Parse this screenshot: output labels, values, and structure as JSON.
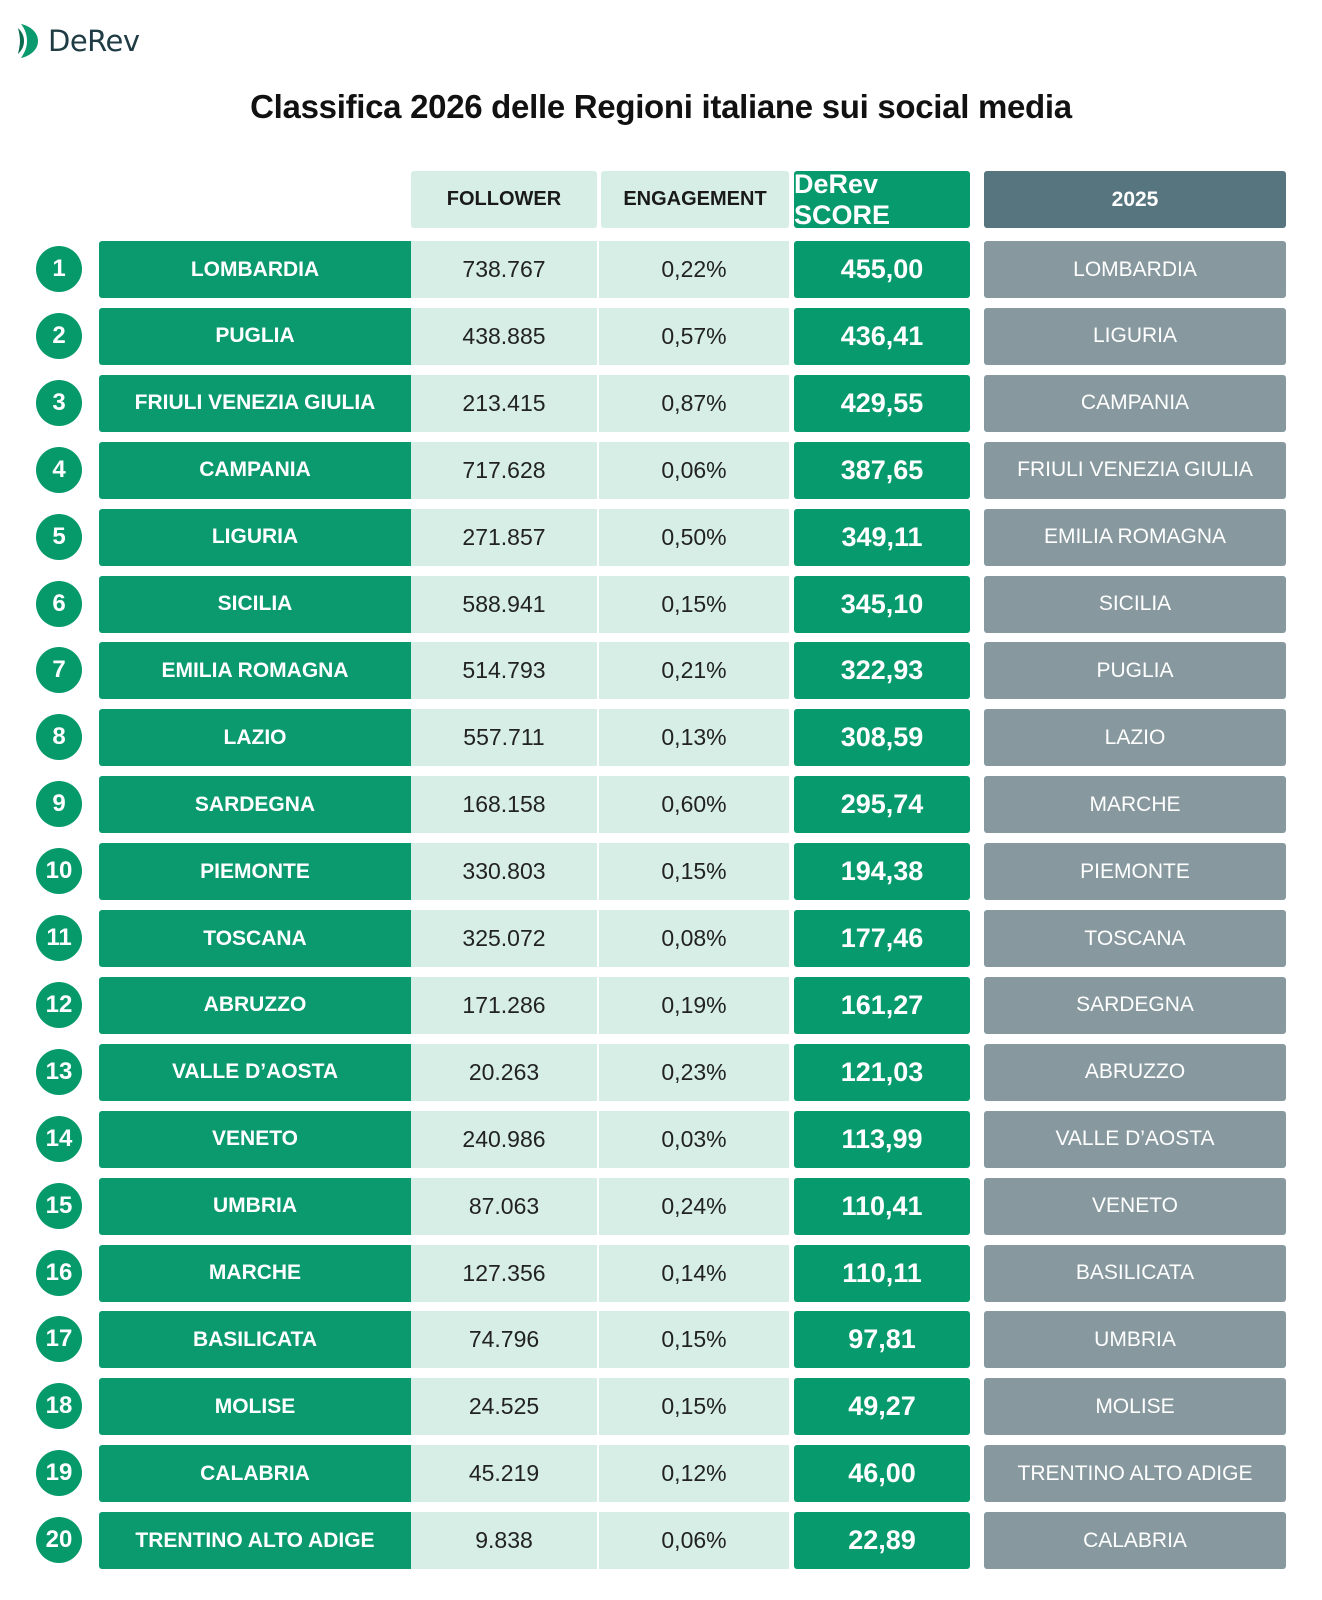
{
  "brand": {
    "name": "DeRev"
  },
  "title": "Classifica 2026 delle Regioni italiane sui social media",
  "headers": {
    "follower": "FOLLOWER",
    "engagement": "ENGAGEMENT",
    "score": "DeRev SCORE",
    "previous": "2025"
  },
  "colors": {
    "primary_green": "#0a9a6e",
    "light_green": "#d6eee6",
    "previous_gray": "#87999f",
    "previous_header": "#57757f"
  },
  "rows": [
    {
      "rank": "1",
      "region": "LOMBARDIA",
      "follower": "738.767",
      "engagement": "0,22%",
      "score": "455,00",
      "previous": "LOMBARDIA"
    },
    {
      "rank": "2",
      "region": "PUGLIA",
      "follower": "438.885",
      "engagement": "0,57%",
      "score": "436,41",
      "previous": "LIGURIA"
    },
    {
      "rank": "3",
      "region": "FRIULI VENEZIA GIULIA",
      "follower": "213.415",
      "engagement": "0,87%",
      "score": "429,55",
      "previous": "CAMPANIA"
    },
    {
      "rank": "4",
      "region": "CAMPANIA",
      "follower": "717.628",
      "engagement": "0,06%",
      "score": "387,65",
      "previous": "FRIULI VENEZIA GIULIA"
    },
    {
      "rank": "5",
      "region": "LIGURIA",
      "follower": "271.857",
      "engagement": "0,50%",
      "score": "349,11",
      "previous": "EMILIA ROMAGNA"
    },
    {
      "rank": "6",
      "region": "SICILIA",
      "follower": "588.941",
      "engagement": "0,15%",
      "score": "345,10",
      "previous": "SICILIA"
    },
    {
      "rank": "7",
      "region": "EMILIA ROMAGNA",
      "follower": "514.793",
      "engagement": "0,21%",
      "score": "322,93",
      "previous": "PUGLIA"
    },
    {
      "rank": "8",
      "region": "LAZIO",
      "follower": "557.711",
      "engagement": "0,13%",
      "score": "308,59",
      "previous": "LAZIO"
    },
    {
      "rank": "9",
      "region": "SARDEGNA",
      "follower": "168.158",
      "engagement": "0,60%",
      "score": "295,74",
      "previous": "MARCHE"
    },
    {
      "rank": "10",
      "region": "PIEMONTE",
      "follower": "330.803",
      "engagement": "0,15%",
      "score": "194,38",
      "previous": "PIEMONTE"
    },
    {
      "rank": "11",
      "region": "TOSCANA",
      "follower": "325.072",
      "engagement": "0,08%",
      "score": "177,46",
      "previous": "TOSCANA"
    },
    {
      "rank": "12",
      "region": "ABRUZZO",
      "follower": "171.286",
      "engagement": "0,19%",
      "score": "161,27",
      "previous": "SARDEGNA"
    },
    {
      "rank": "13",
      "region": "VALLE D’AOSTA",
      "follower": "20.263",
      "engagement": "0,23%",
      "score": "121,03",
      "previous": "ABRUZZO"
    },
    {
      "rank": "14",
      "region": "VENETO",
      "follower": "240.986",
      "engagement": "0,03%",
      "score": "113,99",
      "previous": "VALLE D’AOSTA"
    },
    {
      "rank": "15",
      "region": "UMBRIA",
      "follower": "87.063",
      "engagement": "0,24%",
      "score": "110,41",
      "previous": "VENETO"
    },
    {
      "rank": "16",
      "region": "MARCHE",
      "follower": "127.356",
      "engagement": "0,14%",
      "score": "110,11",
      "previous": "BASILICATA"
    },
    {
      "rank": "17",
      "region": "BASILICATA",
      "follower": "74.796",
      "engagement": "0,15%",
      "score": "97,81",
      "previous": "UMBRIA"
    },
    {
      "rank": "18",
      "region": "MOLISE",
      "follower": "24.525",
      "engagement": "0,15%",
      "score": "49,27",
      "previous": "MOLISE"
    },
    {
      "rank": "19",
      "region": "CALABRIA",
      "follower": "45.219",
      "engagement": "0,12%",
      "score": "46,00",
      "previous": "TRENTINO ALTO ADIGE"
    },
    {
      "rank": "20",
      "region": "TRENTINO ALTO ADIGE",
      "follower": "9.838",
      "engagement": "0,06%",
      "score": "22,89",
      "previous": "CALABRIA"
    }
  ]
}
